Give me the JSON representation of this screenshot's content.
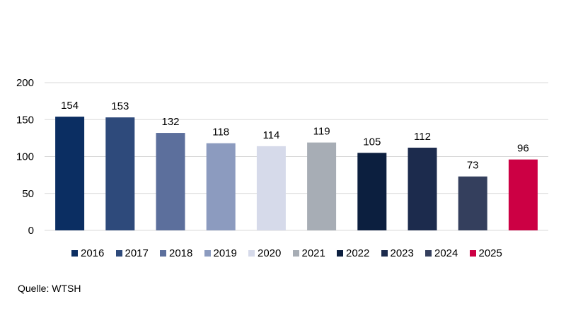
{
  "chart_data": {
    "type": "bar",
    "categories": [
      "2016",
      "2017",
      "2018",
      "2019",
      "2020",
      "2021",
      "2022",
      "2023",
      "2024",
      "2025"
    ],
    "values": [
      154,
      153,
      132,
      118,
      114,
      119,
      105,
      112,
      73,
      96
    ],
    "colors": [
      "#0b2e62",
      "#2e4a7b",
      "#5c6f9c",
      "#8c9bbf",
      "#d6daea",
      "#a7adb5",
      "#0c1f3f",
      "#1c2b4d",
      "#343f5d",
      "#cc0044"
    ],
    "ylim": [
      0,
      200
    ],
    "yticks": [
      0,
      50,
      100,
      150,
      200
    ],
    "grid": true,
    "legend_position": "bottom",
    "title": "",
    "xlabel": "",
    "ylabel": ""
  },
  "source": "Quelle: WTSH"
}
